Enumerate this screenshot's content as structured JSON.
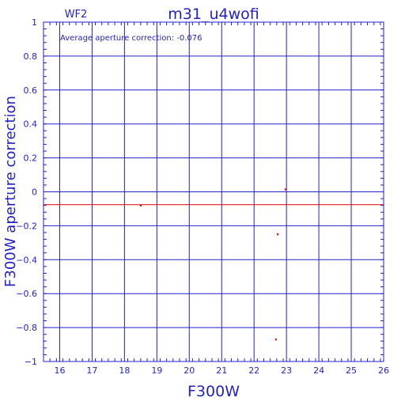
{
  "header": {
    "chip": "WF2",
    "title": "m31_u4wofi"
  },
  "annotation": "Average aperture correction:  -0.076",
  "chart_data": {
    "type": "scatter",
    "xlabel": "F300W",
    "ylabel": "F300W  aperture  correction",
    "xlim": [
      15.5,
      26
    ],
    "ylim": [
      -1,
      1
    ],
    "x_ticks": [
      16,
      17,
      18,
      19,
      20,
      21,
      22,
      23,
      24,
      25,
      26
    ],
    "y_ticks": [
      -1,
      -0.8,
      -0.6,
      -0.4,
      -0.2,
      0,
      0.2,
      0.4,
      0.6,
      0.8,
      1
    ],
    "x_tick_labels": [
      "16",
      "17",
      "18",
      "19",
      "20",
      "21",
      "22",
      "23",
      "24",
      "25",
      "26"
    ],
    "y_tick_labels": [
      "−1",
      "−0.8",
      "−0.6",
      "−0.4",
      "−0.2",
      "0",
      "0.2",
      "0.4",
      "0.6",
      "0.8",
      "1"
    ],
    "grid": true,
    "series": [
      {
        "points": [
          {
            "x": 18.5,
            "y": -0.08
          },
          {
            "x": 22.73,
            "y": -0.25
          },
          {
            "x": 22.97,
            "y": 0.015
          },
          {
            "x": 22.67,
            "y": -0.87
          }
        ]
      }
    ],
    "reference_line": {
      "y": -0.076
    },
    "colors": {
      "axes": "#2222cc",
      "data": "#dd0000"
    }
  }
}
